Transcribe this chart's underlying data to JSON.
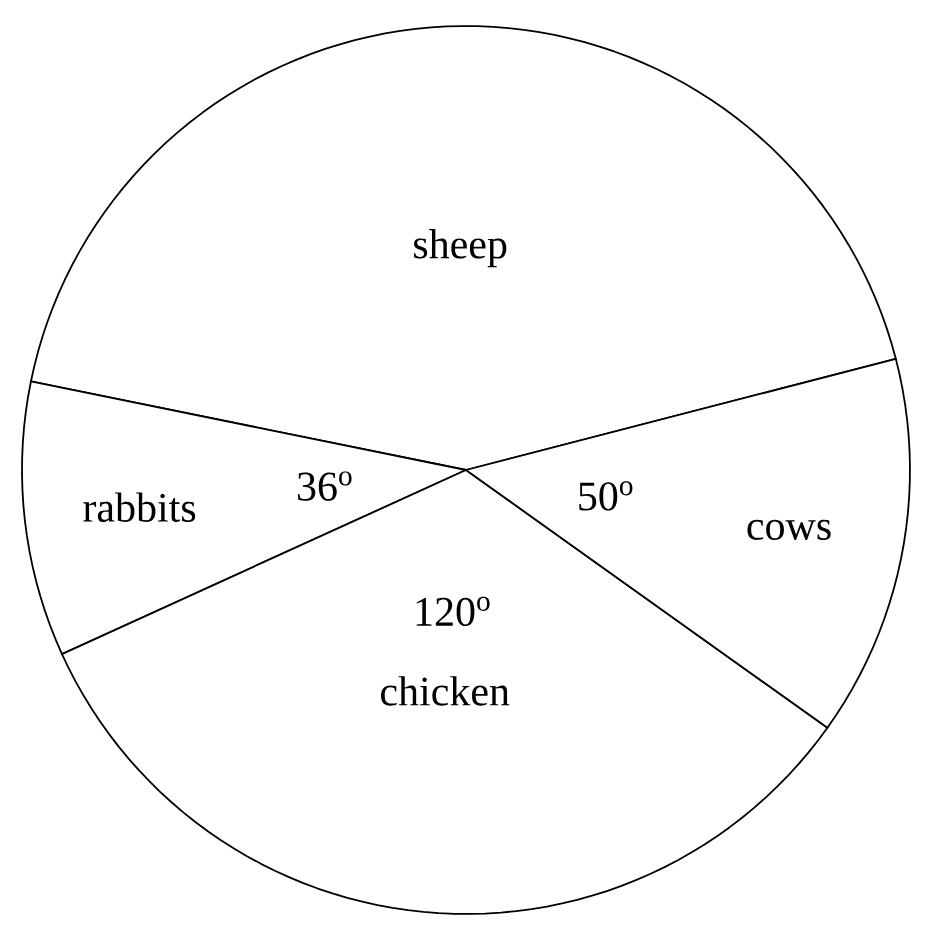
{
  "chart_data": {
    "type": "pie",
    "categories": [
      "sheep",
      "rabbits",
      "chicken",
      "cows"
    ],
    "values": [
      154,
      36,
      120,
      50
    ],
    "colors": [
      "#ffffff",
      "#ffffff",
      "#ffffff",
      "#ffffff"
    ],
    "value_labels": [
      null,
      "36$^{o}$",
      "120$^{o}$",
      "50$^{o}$"
    ]
  }
}
